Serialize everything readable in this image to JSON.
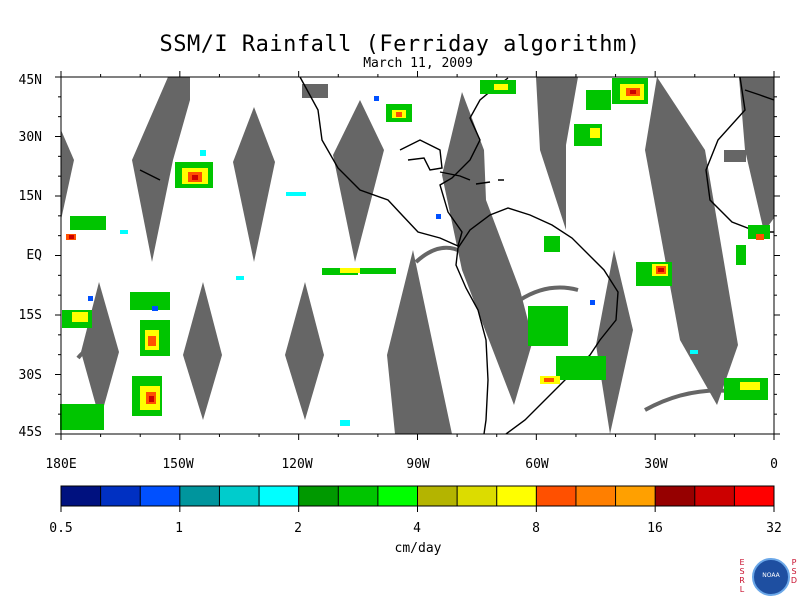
{
  "title": "SSM/I Rainfall (Ferriday algorithm)",
  "subtitle": "March 11, 2009",
  "lat_labels": [
    "45N",
    "30N",
    "15N",
    "EQ",
    "15S",
    "30S",
    "45S"
  ],
  "lon_labels": [
    "180E",
    "150W",
    "120W",
    "90W",
    "60W",
    "30W",
    "0"
  ],
  "colorbar": {
    "labels": [
      "0.5",
      "1",
      "2",
      "4",
      "8",
      "16",
      "32"
    ],
    "units": "cm/day",
    "colors": [
      "#00117f",
      "#0030c2",
      "#0050ff",
      "#00959d",
      "#00cccc",
      "#00ffff",
      "#009900",
      "#00c500",
      "#00ff00",
      "#b4b400",
      "#dcdc00",
      "#ffff00",
      "#ff5000",
      "#ff7f00",
      "#ffa000",
      "#960000",
      "#cc0000",
      "#ff0000"
    ]
  },
  "map": {
    "lon_range": [
      -180,
      0
    ],
    "lat_range": [
      -45,
      45
    ],
    "swath_color": "#666666",
    "land_outline": "#000000"
  },
  "logo": {
    "left_text": "ESRL",
    "right_text": "PSD",
    "emblem": "NOAA"
  }
}
